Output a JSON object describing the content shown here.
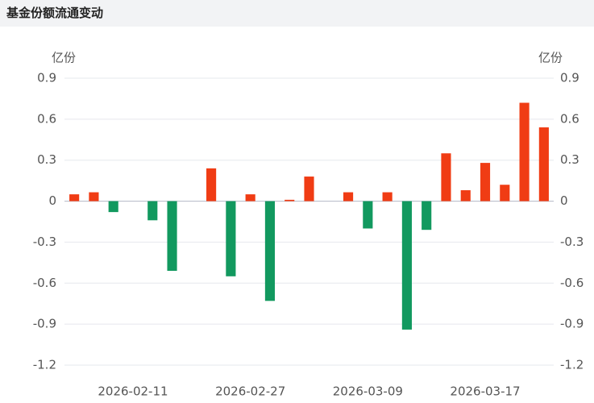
{
  "header": {
    "title": "基金份额流通变动"
  },
  "chart_data": {
    "type": "bar",
    "y_unit": "亿份",
    "y2_unit": "亿份",
    "categories": [
      null,
      null,
      null,
      "2026-02-11",
      null,
      null,
      null,
      null,
      null,
      "2026-02-27",
      null,
      null,
      null,
      null,
      null,
      "2026-03-09",
      null,
      null,
      null,
      null,
      null,
      "2026-03-17",
      null,
      null,
      null
    ],
    "values": [
      0.05,
      0.065,
      -0.08,
      0,
      -0.14,
      -0.51,
      0,
      0.24,
      -0.55,
      0.05,
      -0.73,
      0.01,
      0.18,
      0,
      0.065,
      -0.2,
      0.065,
      -0.94,
      -0.21,
      0.35,
      0.08,
      0.28,
      0.12,
      0.72,
      0.54
    ],
    "positive_color": "#f03c14",
    "negative_color": "#12995f",
    "ylim": [
      -1.2,
      0.9
    ],
    "yticks": [
      0.9,
      0.6,
      0.3,
      0,
      -0.3,
      -0.6,
      -0.9,
      -1.2
    ],
    "y2lim": [
      -1.2,
      0.9
    ],
    "y2ticks": [
      0.9,
      0.6,
      0.3,
      0,
      -0.3,
      -0.6,
      -0.9,
      -1.2
    ],
    "grid": true
  }
}
